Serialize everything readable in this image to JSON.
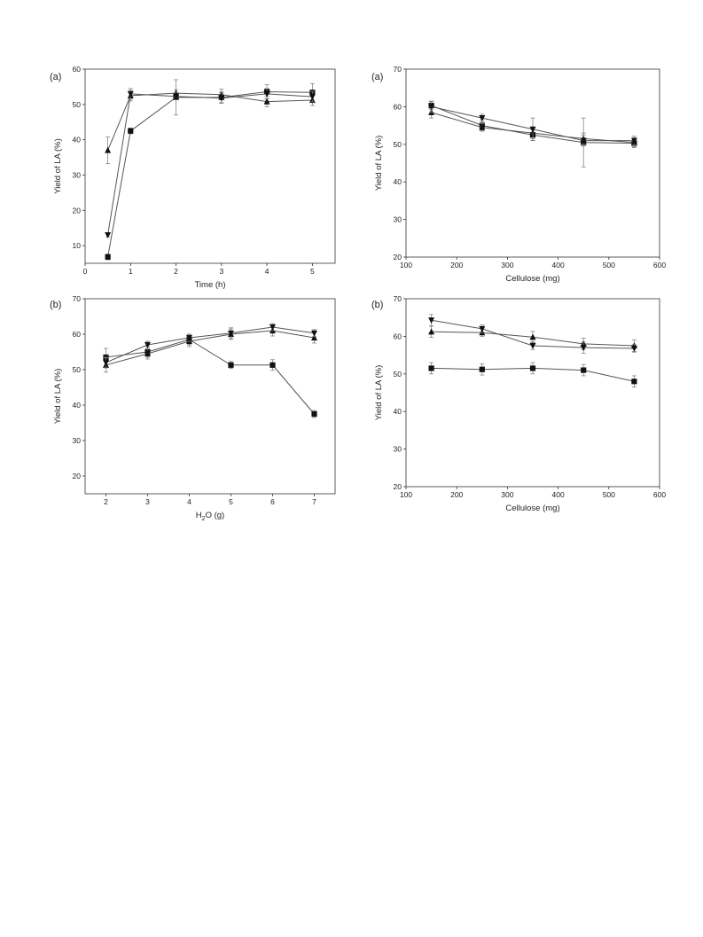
{
  "chart_data": [
    {
      "type": "line",
      "panel_label": "(a)",
      "xlabel": "Time (h)",
      "ylabel": "Yield of LA (%)",
      "xlim": [
        0,
        5.5
      ],
      "ylim": [
        5,
        60
      ],
      "xticks": [
        0,
        1,
        2,
        3,
        4,
        5
      ],
      "yticks": [
        10,
        20,
        30,
        40,
        50,
        60
      ],
      "series": [
        {
          "marker": "square",
          "x": [
            0.5,
            1,
            2,
            3,
            4,
            5
          ],
          "y": [
            6.8,
            42.5,
            52.0,
            52.0,
            53.6,
            53.4
          ],
          "err": [
            0.8,
            0.8,
            5.0,
            1.5,
            2.0,
            2.5
          ]
        },
        {
          "marker": "triangle-up",
          "x": [
            0.5,
            1,
            2,
            3,
            4,
            5
          ],
          "y": [
            37.0,
            52.5,
            53.2,
            52.8,
            50.8,
            51.2
          ],
          "err": [
            3.8,
            1.5,
            1.0,
            1.5,
            1.5,
            1.5
          ]
        },
        {
          "marker": "triangle-down",
          "x": [
            0.5,
            1,
            2,
            3,
            4,
            5
          ],
          "y": [
            13.0,
            53.0,
            52.3,
            51.8,
            53.0,
            52.2
          ],
          "err": [
            0.5,
            1.5,
            1.0,
            1.5,
            1.5,
            1.5
          ]
        }
      ]
    },
    {
      "type": "line",
      "panel_label": "(a)",
      "xlabel": "Cellulose (mg)",
      "ylabel": "Yield of LA (%)",
      "xlim": [
        100,
        600
      ],
      "ylim": [
        20,
        70
      ],
      "xticks": [
        100,
        200,
        300,
        400,
        500,
        600
      ],
      "yticks": [
        20,
        30,
        40,
        50,
        60,
        70
      ],
      "series": [
        {
          "marker": "square",
          "x": [
            150,
            250,
            350,
            450,
            550
          ],
          "y": [
            60.3,
            55.0,
            52.5,
            50.5,
            50.3
          ],
          "err": [
            1.0,
            1.5,
            1.5,
            6.5,
            1.2
          ]
        },
        {
          "marker": "triangle-up",
          "x": [
            150,
            250,
            350,
            450,
            550
          ],
          "y": [
            58.5,
            54.5,
            53.0,
            51.5,
            50.5
          ],
          "err": [
            1.5,
            1.0,
            1.5,
            1.5,
            1.2
          ]
        },
        {
          "marker": "triangle-down",
          "x": [
            150,
            250,
            350,
            450,
            550
          ],
          "y": [
            60.0,
            57.0,
            54.0,
            51.0,
            51.0
          ],
          "err": [
            1.5,
            1.0,
            3.0,
            1.5,
            1.2
          ]
        }
      ]
    },
    {
      "type": "line",
      "panel_label": "(b)",
      "xlabel": "H",
      "xlabel_sub": "2",
      "xlabel_rest": "O (g)",
      "ylabel": "Yield of LA (%)",
      "xlim": [
        1.5,
        7.5
      ],
      "ylim": [
        15,
        70
      ],
      "xticks": [
        2,
        3,
        4,
        5,
        6,
        7
      ],
      "yticks": [
        20,
        30,
        40,
        50,
        60,
        70
      ],
      "series": [
        {
          "marker": "square",
          "x": [
            2,
            3,
            4,
            5,
            6,
            7
          ],
          "y": [
            53.5,
            55.0,
            58.5,
            51.3,
            51.3,
            37.5
          ],
          "err": [
            2.5,
            1.5,
            1.5,
            1.0,
            1.5,
            1.0
          ]
        },
        {
          "marker": "triangle-up",
          "x": [
            2,
            3,
            4,
            5,
            6,
            7
          ],
          "y": [
            51.3,
            54.5,
            58.0,
            60.0,
            61.0,
            59.0
          ],
          "err": [
            2.0,
            1.5,
            1.5,
            1.5,
            1.5,
            1.5
          ]
        },
        {
          "marker": "triangle-down",
          "x": [
            2,
            3,
            4,
            5,
            6,
            7
          ],
          "y": [
            52.0,
            57.0,
            59.0,
            60.3,
            62.0,
            60.3
          ],
          "err": [
            1.5,
            1.0,
            1.0,
            1.5,
            1.0,
            1.0
          ]
        }
      ]
    },
    {
      "type": "line",
      "panel_label": "(b)",
      "xlabel": "Cellulose (mg)",
      "ylabel": "Yield of LA (%)",
      "xlim": [
        100,
        600
      ],
      "ylim": [
        20,
        70
      ],
      "xticks": [
        100,
        200,
        300,
        400,
        500,
        600
      ],
      "yticks": [
        20,
        30,
        40,
        50,
        60,
        70
      ],
      "series": [
        {
          "marker": "square",
          "x": [
            150,
            250,
            350,
            450,
            550
          ],
          "y": [
            51.5,
            51.2,
            51.5,
            51.0,
            48.0
          ],
          "err": [
            1.5,
            1.5,
            1.5,
            1.5,
            1.5
          ]
        },
        {
          "marker": "triangle-up",
          "x": [
            150,
            250,
            350,
            450,
            550
          ],
          "y": [
            61.2,
            61.0,
            59.8,
            58.0,
            57.5
          ],
          "err": [
            1.5,
            1.0,
            1.5,
            1.5,
            1.5
          ]
        },
        {
          "marker": "triangle-down",
          "x": [
            150,
            250,
            350,
            450,
            550
          ],
          "y": [
            64.3,
            62.0,
            57.5,
            57.0,
            56.8
          ],
          "err": [
            1.5,
            1.0,
            1.0,
            1.5,
            1.0
          ]
        }
      ]
    }
  ]
}
